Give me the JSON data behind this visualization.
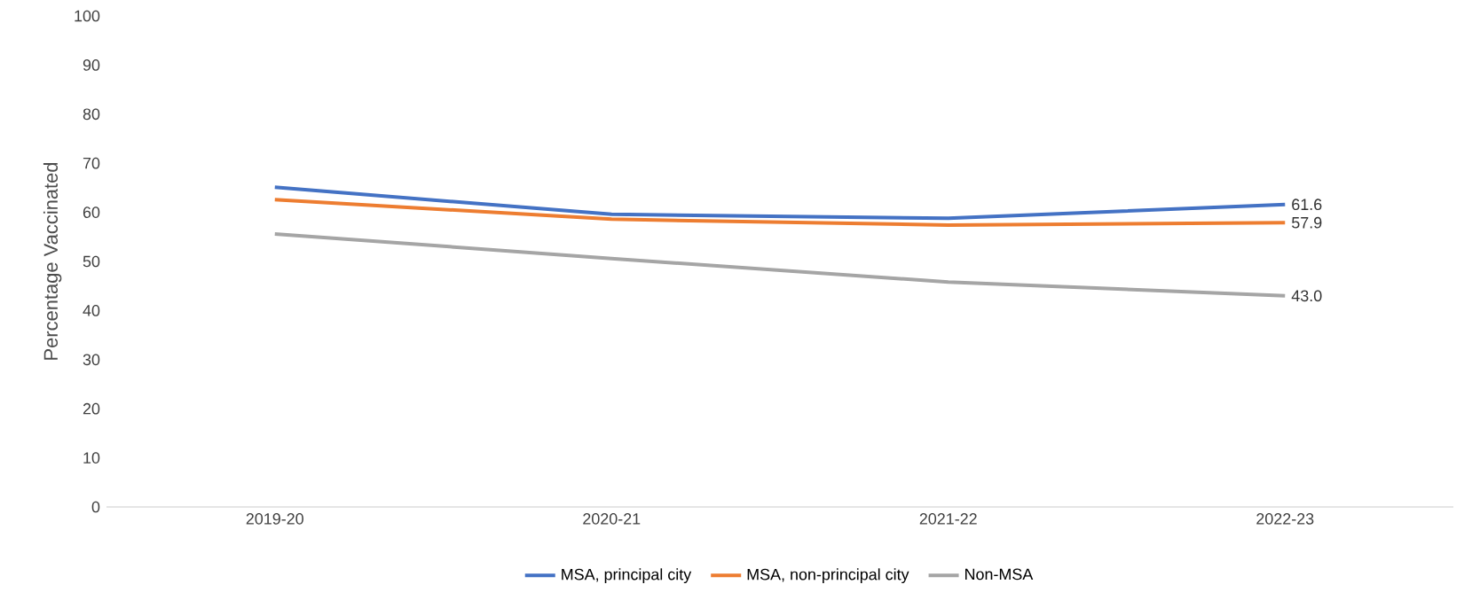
{
  "chart_data": {
    "type": "line",
    "ylabel": "Percentage Vaccinated",
    "categories": [
      "2019-20",
      "2020-21",
      "2021-22",
      "2022-23"
    ],
    "ylim": [
      0,
      100
    ],
    "yticks": [
      0,
      10,
      20,
      30,
      40,
      50,
      60,
      70,
      80,
      90,
      100
    ],
    "legend": "bottom",
    "series": [
      {
        "name": "MSA, principal city",
        "color": "#4472c4",
        "values": [
          65.1,
          59.6,
          58.8,
          61.6
        ],
        "value_labels": [
          null,
          null,
          null,
          "61.6"
        ]
      },
      {
        "name": "MSA, non-principal city",
        "color": "#ed7d31",
        "values": [
          62.6,
          58.6,
          57.4,
          57.9
        ],
        "value_labels": [
          null,
          null,
          null,
          "57.9"
        ]
      },
      {
        "name": "Non-MSA",
        "color": "#a5a5a5",
        "values": [
          55.6,
          50.6,
          45.8,
          43.0
        ],
        "value_labels": [
          null,
          null,
          null,
          "43.0"
        ]
      }
    ]
  }
}
